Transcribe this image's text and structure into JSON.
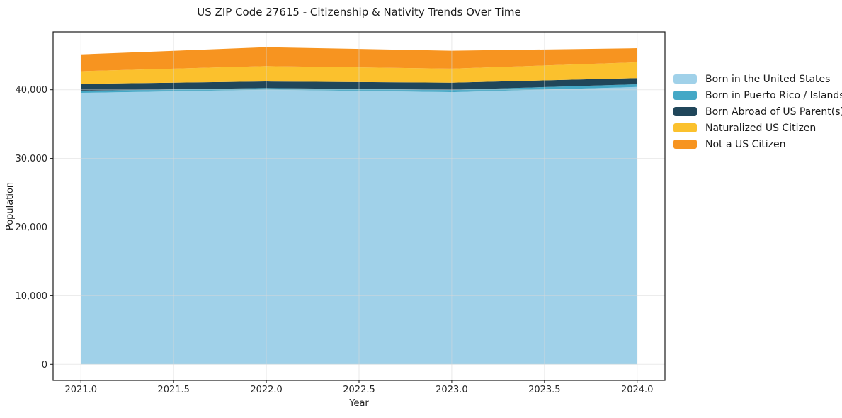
{
  "chart_data": {
    "type": "area",
    "stacked": true,
    "title": "US ZIP Code 27615 - Citizenship & Nativity Trends Over Time",
    "xlabel": "Year",
    "ylabel": "Population",
    "x": [
      2021,
      2022,
      2023,
      2024
    ],
    "series": [
      {
        "name": "Born in the United States",
        "color": "#A0D1E9",
        "values": [
          39550,
          40000,
          39650,
          40400
        ]
      },
      {
        "name": "Born in Puerto Rico / Islands",
        "color": "#44A8C6",
        "values": [
          300,
          250,
          330,
          400
        ]
      },
      {
        "name": "Born Abroad of US Parent(s)",
        "color": "#20465A",
        "values": [
          1000,
          950,
          1050,
          900
        ]
      },
      {
        "name": "Naturalized US Citizen",
        "color": "#FBC12D",
        "values": [
          1850,
          2250,
          2050,
          2300
        ]
      },
      {
        "name": "Not a US Citizen",
        "color": "#F79420",
        "values": [
          2450,
          2750,
          2600,
          2050
        ]
      }
    ],
    "x_ticks": {
      "values": [
        2021.0,
        2021.5,
        2022.0,
        2022.5,
        2023.0,
        2023.5,
        2024.0
      ],
      "labels": [
        "2021.0",
        "2021.5",
        "2022.0",
        "2022.5",
        "2023.0",
        "2023.5",
        "2024.0"
      ]
    },
    "y_ticks": {
      "values": [
        0,
        10000,
        20000,
        30000,
        40000
      ],
      "labels": [
        "0",
        "10,000",
        "20,000",
        "30,000",
        "40,000"
      ]
    },
    "xlim": [
      2020.85,
      2024.15
    ],
    "ylim": [
      -2343,
      48430
    ],
    "grid": true,
    "legend_position": "right",
    "axis_color": "#1a1a1a",
    "grid_color": "#d9d9d9",
    "tick_font_px": 13,
    "label_font_px": 13
  }
}
